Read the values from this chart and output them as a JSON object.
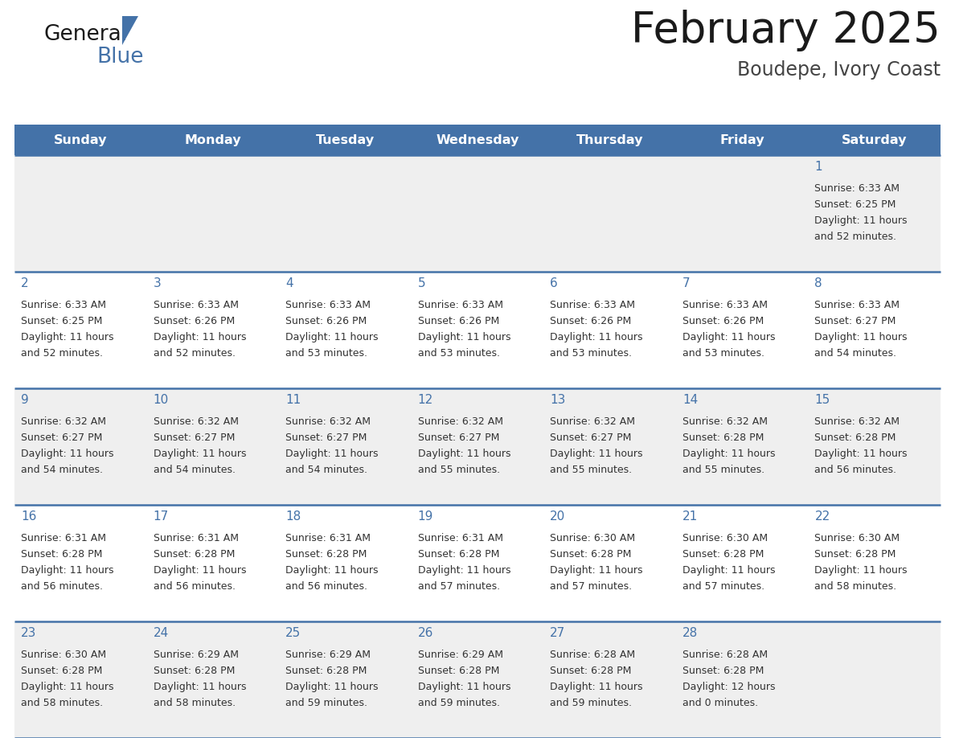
{
  "title": "February 2025",
  "subtitle": "Boudepe, Ivory Coast",
  "header_bg_color": "#4472a8",
  "header_text_color": "#ffffff",
  "days_of_week": [
    "Sunday",
    "Monday",
    "Tuesday",
    "Wednesday",
    "Thursday",
    "Friday",
    "Saturday"
  ],
  "cell_bg_color_odd": "#efefef",
  "cell_bg_color_even": "#ffffff",
  "cell_border_color": "#4472a8",
  "day_number_color": "#4472a8",
  "info_text_color": "#333333",
  "calendar_data": [
    [
      null,
      null,
      null,
      null,
      null,
      null,
      {
        "day": 1,
        "sunrise": "6:33 AM",
        "sunset": "6:25 PM",
        "daylight_line1": "Daylight: 11 hours",
        "daylight_line2": "and 52 minutes."
      }
    ],
    [
      {
        "day": 2,
        "sunrise": "6:33 AM",
        "sunset": "6:25 PM",
        "daylight_line1": "Daylight: 11 hours",
        "daylight_line2": "and 52 minutes."
      },
      {
        "day": 3,
        "sunrise": "6:33 AM",
        "sunset": "6:26 PM",
        "daylight_line1": "Daylight: 11 hours",
        "daylight_line2": "and 52 minutes."
      },
      {
        "day": 4,
        "sunrise": "6:33 AM",
        "sunset": "6:26 PM",
        "daylight_line1": "Daylight: 11 hours",
        "daylight_line2": "and 53 minutes."
      },
      {
        "day": 5,
        "sunrise": "6:33 AM",
        "sunset": "6:26 PM",
        "daylight_line1": "Daylight: 11 hours",
        "daylight_line2": "and 53 minutes."
      },
      {
        "day": 6,
        "sunrise": "6:33 AM",
        "sunset": "6:26 PM",
        "daylight_line1": "Daylight: 11 hours",
        "daylight_line2": "and 53 minutes."
      },
      {
        "day": 7,
        "sunrise": "6:33 AM",
        "sunset": "6:26 PM",
        "daylight_line1": "Daylight: 11 hours",
        "daylight_line2": "and 53 minutes."
      },
      {
        "day": 8,
        "sunrise": "6:33 AM",
        "sunset": "6:27 PM",
        "daylight_line1": "Daylight: 11 hours",
        "daylight_line2": "and 54 minutes."
      }
    ],
    [
      {
        "day": 9,
        "sunrise": "6:32 AM",
        "sunset": "6:27 PM",
        "daylight_line1": "Daylight: 11 hours",
        "daylight_line2": "and 54 minutes."
      },
      {
        "day": 10,
        "sunrise": "6:32 AM",
        "sunset": "6:27 PM",
        "daylight_line1": "Daylight: 11 hours",
        "daylight_line2": "and 54 minutes."
      },
      {
        "day": 11,
        "sunrise": "6:32 AM",
        "sunset": "6:27 PM",
        "daylight_line1": "Daylight: 11 hours",
        "daylight_line2": "and 54 minutes."
      },
      {
        "day": 12,
        "sunrise": "6:32 AM",
        "sunset": "6:27 PM",
        "daylight_line1": "Daylight: 11 hours",
        "daylight_line2": "and 55 minutes."
      },
      {
        "day": 13,
        "sunrise": "6:32 AM",
        "sunset": "6:27 PM",
        "daylight_line1": "Daylight: 11 hours",
        "daylight_line2": "and 55 minutes."
      },
      {
        "day": 14,
        "sunrise": "6:32 AM",
        "sunset": "6:28 PM",
        "daylight_line1": "Daylight: 11 hours",
        "daylight_line2": "and 55 minutes."
      },
      {
        "day": 15,
        "sunrise": "6:32 AM",
        "sunset": "6:28 PM",
        "daylight_line1": "Daylight: 11 hours",
        "daylight_line2": "and 56 minutes."
      }
    ],
    [
      {
        "day": 16,
        "sunrise": "6:31 AM",
        "sunset": "6:28 PM",
        "daylight_line1": "Daylight: 11 hours",
        "daylight_line2": "and 56 minutes."
      },
      {
        "day": 17,
        "sunrise": "6:31 AM",
        "sunset": "6:28 PM",
        "daylight_line1": "Daylight: 11 hours",
        "daylight_line2": "and 56 minutes."
      },
      {
        "day": 18,
        "sunrise": "6:31 AM",
        "sunset": "6:28 PM",
        "daylight_line1": "Daylight: 11 hours",
        "daylight_line2": "and 56 minutes."
      },
      {
        "day": 19,
        "sunrise": "6:31 AM",
        "sunset": "6:28 PM",
        "daylight_line1": "Daylight: 11 hours",
        "daylight_line2": "and 57 minutes."
      },
      {
        "day": 20,
        "sunrise": "6:30 AM",
        "sunset": "6:28 PM",
        "daylight_line1": "Daylight: 11 hours",
        "daylight_line2": "and 57 minutes."
      },
      {
        "day": 21,
        "sunrise": "6:30 AM",
        "sunset": "6:28 PM",
        "daylight_line1": "Daylight: 11 hours",
        "daylight_line2": "and 57 minutes."
      },
      {
        "day": 22,
        "sunrise": "6:30 AM",
        "sunset": "6:28 PM",
        "daylight_line1": "Daylight: 11 hours",
        "daylight_line2": "and 58 minutes."
      }
    ],
    [
      {
        "day": 23,
        "sunrise": "6:30 AM",
        "sunset": "6:28 PM",
        "daylight_line1": "Daylight: 11 hours",
        "daylight_line2": "and 58 minutes."
      },
      {
        "day": 24,
        "sunrise": "6:29 AM",
        "sunset": "6:28 PM",
        "daylight_line1": "Daylight: 11 hours",
        "daylight_line2": "and 58 minutes."
      },
      {
        "day": 25,
        "sunrise": "6:29 AM",
        "sunset": "6:28 PM",
        "daylight_line1": "Daylight: 11 hours",
        "daylight_line2": "and 59 minutes."
      },
      {
        "day": 26,
        "sunrise": "6:29 AM",
        "sunset": "6:28 PM",
        "daylight_line1": "Daylight: 11 hours",
        "daylight_line2": "and 59 minutes."
      },
      {
        "day": 27,
        "sunrise": "6:28 AM",
        "sunset": "6:28 PM",
        "daylight_line1": "Daylight: 11 hours",
        "daylight_line2": "and 59 minutes."
      },
      {
        "day": 28,
        "sunrise": "6:28 AM",
        "sunset": "6:28 PM",
        "daylight_line1": "Daylight: 12 hours",
        "daylight_line2": "and 0 minutes."
      },
      null
    ]
  ],
  "n_rows": 5,
  "n_cols": 7
}
